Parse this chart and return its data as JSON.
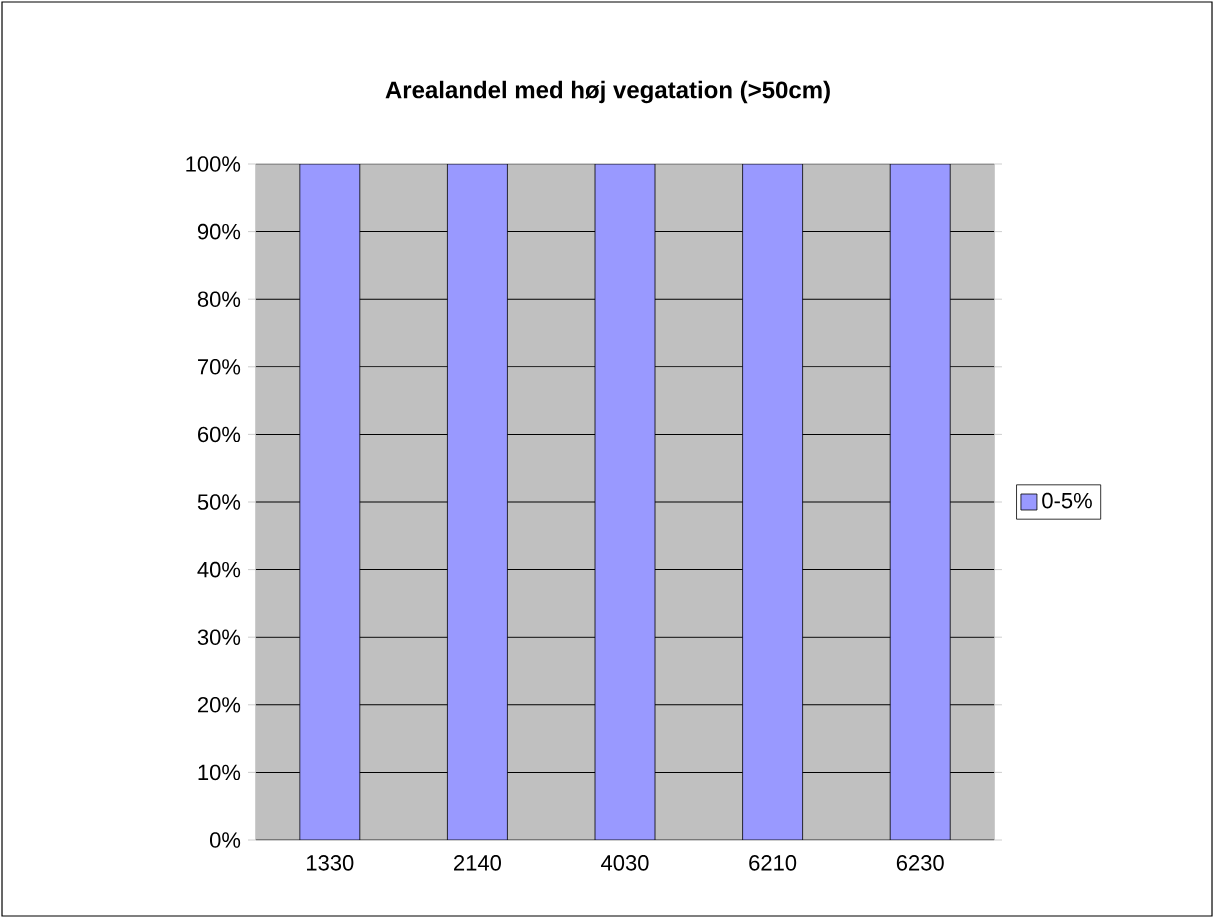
{
  "chart_data": {
    "type": "bar",
    "title": "Arealandel med høj vegatation (>50cm)",
    "categories": [
      "1330",
      "2140",
      "4030",
      "6210",
      "6230"
    ],
    "series": [
      {
        "name": "0-5%",
        "color": "#9999ff",
        "values": [
          100,
          100,
          100,
          100,
          100
        ]
      }
    ],
    "ylim": [
      0,
      100
    ],
    "yticks": [
      {
        "value": 0,
        "label": "0%"
      },
      {
        "value": 10,
        "label": "10%"
      },
      {
        "value": 20,
        "label": "20%"
      },
      {
        "value": 30,
        "label": "30%"
      },
      {
        "value": 40,
        "label": "40%"
      },
      {
        "value": 50,
        "label": "50%"
      },
      {
        "value": 60,
        "label": "60%"
      },
      {
        "value": 70,
        "label": "70%"
      },
      {
        "value": 80,
        "label": "80%"
      },
      {
        "value": 90,
        "label": "90%"
      },
      {
        "value": 100,
        "label": "100%"
      }
    ],
    "grid": "y",
    "legend": "right"
  }
}
